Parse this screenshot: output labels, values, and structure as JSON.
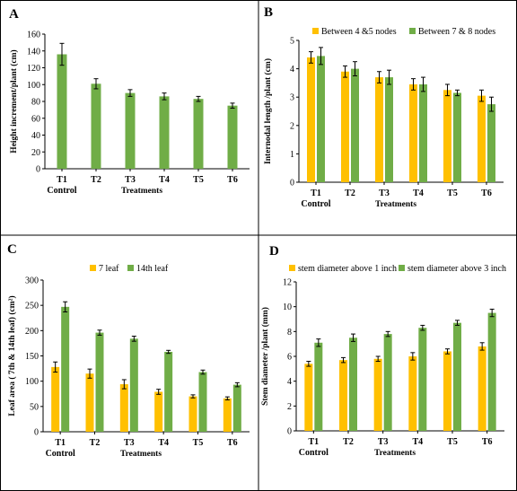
{
  "colors": {
    "orange": "#FFC000",
    "green": "#70AD47",
    "grid_border": "#000000"
  },
  "chart_data": [
    {
      "type": "bar",
      "panel": "A",
      "categories": [
        "T1",
        "T2",
        "T3",
        "T4",
        "T5",
        "T6"
      ],
      "control_label": "Control",
      "xlabel": "Treatments",
      "ylabel": "Height increment/plant  (cm)",
      "ylim": [
        0,
        160
      ],
      "yticks": [
        0,
        20,
        40,
        60,
        80,
        100,
        120,
        140,
        160
      ],
      "legend": "none",
      "series": [
        {
          "color": "#70AD47",
          "values": [
            136,
            101,
            90,
            86,
            83,
            75
          ],
          "errors": [
            13,
            6,
            4,
            4,
            3,
            3
          ]
        }
      ]
    },
    {
      "type": "bar",
      "panel": "B",
      "categories": [
        "T1",
        "T2",
        "T3",
        "T4",
        "T5",
        "T6"
      ],
      "control_label": "Control",
      "xlabel": "Treatments",
      "ylabel": "Internodal length /plant (cm)",
      "ylim": [
        0,
        5
      ],
      "yticks": [
        0,
        1,
        2,
        3,
        4,
        5
      ],
      "legend": "top",
      "series": [
        {
          "name": "Between 4 &5 nodes",
          "color": "#FFC000",
          "values": [
            4.4,
            3.9,
            3.7,
            3.45,
            3.25,
            3.05
          ],
          "errors": [
            0.2,
            0.2,
            0.2,
            0.2,
            0.2,
            0.2
          ]
        },
        {
          "name": "Between 7 & 8 nodes",
          "color": "#70AD47",
          "values": [
            4.45,
            4.0,
            3.7,
            3.45,
            3.15,
            2.75
          ],
          "errors": [
            0.3,
            0.25,
            0.25,
            0.25,
            0.1,
            0.25
          ]
        }
      ]
    },
    {
      "type": "bar",
      "panel": "C",
      "categories": [
        "T1",
        "T2",
        "T3",
        "T4",
        "T5",
        "T6"
      ],
      "control_label": "Control",
      "xlabel": "Treatments",
      "ylabel": "Leaf area ( 7th & 14th leaf) (cm²)",
      "ylim": [
        0,
        300
      ],
      "yticks": [
        0,
        50,
        100,
        150,
        200,
        250,
        300
      ],
      "legend": "top",
      "series": [
        {
          "name": "7 leaf",
          "color": "#FFC000",
          "values": [
            128,
            115,
            94,
            79,
            70,
            66
          ],
          "errors": [
            10,
            9,
            9,
            5,
            3,
            3
          ]
        },
        {
          "name": "14th leaf",
          "color": "#70AD47",
          "values": [
            247,
            196,
            184,
            158,
            118,
            93
          ],
          "errors": [
            10,
            5,
            5,
            3,
            4,
            4
          ]
        }
      ]
    },
    {
      "type": "bar",
      "panel": "D",
      "categories": [
        "T1",
        "T2",
        "T3",
        "T4",
        "T5",
        "T6"
      ],
      "control_label": "Control",
      "xlabel": "Treatments",
      "ylabel": "Stem diameter /plant  (mm)",
      "ylim": [
        0,
        12
      ],
      "yticks": [
        0,
        2,
        4,
        6,
        8,
        10,
        12
      ],
      "legend": "top",
      "series": [
        {
          "name": "stem diameter above 1 inch",
          "color": "#FFC000",
          "values": [
            5.4,
            5.7,
            5.8,
            6.0,
            6.4,
            6.8
          ],
          "errors": [
            0.2,
            0.2,
            0.2,
            0.3,
            0.2,
            0.3
          ]
        },
        {
          "name": "stem diameter above 3 inch",
          "color": "#70AD47",
          "values": [
            7.1,
            7.5,
            7.8,
            8.3,
            8.7,
            9.5
          ],
          "errors": [
            0.3,
            0.3,
            0.2,
            0.2,
            0.2,
            0.3
          ]
        }
      ]
    }
  ]
}
